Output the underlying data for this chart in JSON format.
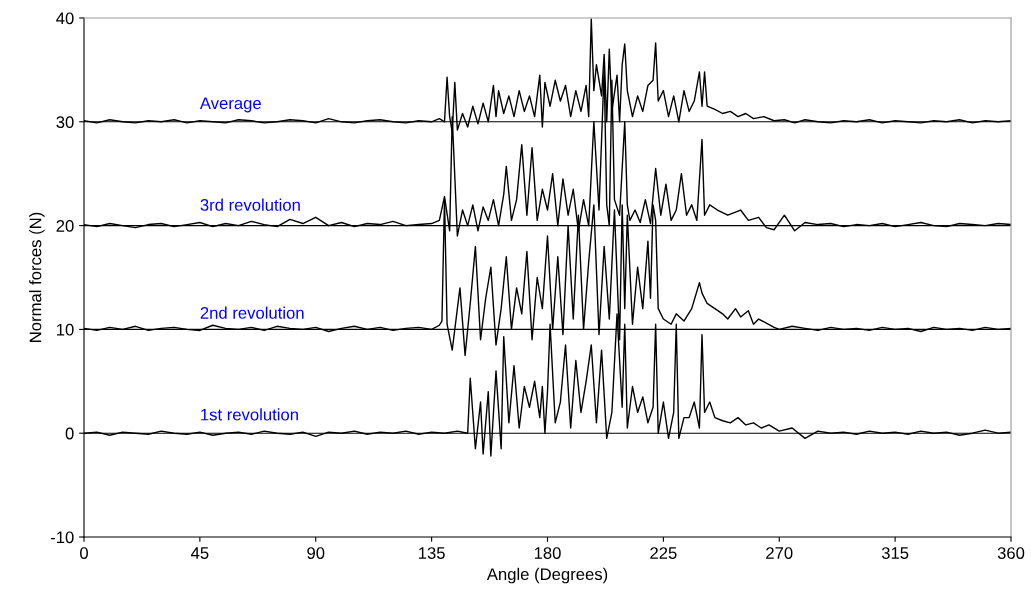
{
  "chart_data": {
    "type": "line",
    "xlabel": "Angle (Degrees)",
    "ylabel": "Normal forces (N)",
    "xlim": [
      0,
      360
    ],
    "xticks": [
      0,
      45,
      90,
      135,
      180,
      225,
      270,
      315,
      360
    ],
    "ylim": [
      -10,
      40
    ],
    "yticks": [
      -10,
      0,
      10,
      20,
      30,
      40
    ],
    "grid": false,
    "marker": "none",
    "line_style": "solid",
    "ref_lines": [
      {
        "axis": "y",
        "value": 0,
        "color": "#000000"
      },
      {
        "axis": "y",
        "value": 10,
        "color": "#000000"
      },
      {
        "axis": "y",
        "value": 20,
        "color": "#000000"
      },
      {
        "axis": "y",
        "value": 30,
        "color": "#000000"
      }
    ],
    "series": [
      {
        "name": "Average",
        "color": "#000000",
        "x": [
          0,
          5,
          10,
          15,
          20,
          25,
          30,
          35,
          40,
          45,
          50,
          55,
          60,
          65,
          70,
          75,
          80,
          85,
          90,
          95,
          100,
          105,
          110,
          115,
          120,
          125,
          130,
          135,
          138,
          140,
          141,
          142,
          143,
          144,
          145,
          147,
          149,
          151,
          153,
          155,
          157,
          159,
          160,
          161,
          163,
          165,
          167,
          169,
          171,
          173,
          175,
          177,
          178,
          179,
          181,
          183,
          185,
          187,
          189,
          191,
          193,
          195,
          196,
          197,
          198,
          199,
          201,
          202,
          203,
          204,
          205,
          207,
          208,
          209,
          210,
          211,
          213,
          215,
          217,
          219,
          221,
          222,
          223,
          225,
          227,
          229,
          231,
          233,
          235,
          237,
          239,
          240,
          241,
          242,
          245,
          248,
          251,
          254,
          257,
          260,
          264,
          268,
          272,
          276,
          280,
          285,
          290,
          295,
          300,
          305,
          310,
          315,
          320,
          325,
          330,
          335,
          340,
          345,
          350,
          355,
          360
        ],
        "values": [
          30.1,
          29.9,
          30.2,
          30.0,
          29.9,
          30.1,
          30.0,
          30.2,
          29.9,
          30.1,
          30.0,
          29.9,
          30.2,
          30.1,
          29.9,
          30.0,
          30.2,
          30.1,
          29.9,
          30.3,
          30.0,
          29.9,
          30.1,
          30.2,
          30.0,
          29.9,
          30.1,
          30.0,
          30.3,
          30.0,
          34.3,
          30.5,
          29.0,
          33.8,
          29.2,
          30.8,
          29.5,
          31.5,
          29.8,
          31.8,
          30.0,
          33.5,
          30.5,
          33.0,
          30.8,
          32.5,
          30.5,
          33.0,
          31.0,
          32.5,
          30.5,
          34.5,
          29.5,
          33.8,
          31.5,
          34.0,
          32.0,
          33.5,
          30.5,
          33.0,
          31.0,
          33.5,
          30.5,
          39.9,
          33.0,
          35.5,
          32.5,
          36.5,
          30.0,
          37.0,
          31.0,
          34.5,
          30.0,
          35.5,
          37.5,
          33.0,
          30.5,
          32.5,
          31.0,
          33.5,
          34.0,
          37.6,
          32.0,
          33.0,
          30.5,
          32.5,
          30.0,
          33.0,
          31.0,
          32.0,
          34.8,
          31.5,
          34.8,
          31.5,
          31.2,
          30.8,
          31.0,
          30.5,
          30.8,
          30.3,
          30.5,
          30.1,
          30.2,
          29.9,
          30.2,
          30.0,
          29.9,
          30.1,
          30.0,
          30.2,
          29.9,
          30.1,
          30.0,
          29.9,
          30.1,
          30.0,
          30.2,
          29.9,
          30.1,
          30.0,
          30.1
        ]
      },
      {
        "name": "3rd revolution",
        "color": "#000000",
        "x": [
          0,
          5,
          10,
          15,
          20,
          25,
          30,
          35,
          40,
          45,
          50,
          55,
          60,
          65,
          70,
          75,
          80,
          85,
          90,
          95,
          100,
          105,
          110,
          115,
          120,
          125,
          130,
          135,
          138,
          140,
          142,
          143,
          145,
          147,
          149,
          151,
          153,
          155,
          157,
          159,
          161,
          163,
          164,
          166,
          168,
          170,
          172,
          174,
          176,
          178,
          180,
          182,
          184,
          186,
          188,
          190,
          192,
          194,
          196,
          198,
          200,
          202,
          203,
          204,
          205,
          206,
          208,
          210,
          211,
          212,
          214,
          216,
          218,
          220,
          222,
          224,
          226,
          228,
          230,
          232,
          234,
          236,
          238,
          240,
          241,
          243,
          246,
          250,
          255,
          258,
          262,
          265,
          268,
          272,
          276,
          280,
          285,
          290,
          295,
          300,
          305,
          310,
          315,
          320,
          325,
          330,
          335,
          340,
          345,
          350,
          355,
          360
        ],
        "values": [
          20.1,
          19.9,
          20.2,
          20.0,
          19.8,
          20.1,
          20.2,
          19.9,
          20.1,
          20.3,
          19.9,
          20.2,
          20.0,
          20.4,
          20.1,
          19.9,
          20.6,
          20.2,
          20.8,
          20.0,
          20.3,
          19.9,
          20.2,
          20.1,
          20.4,
          20.0,
          20.1,
          20.2,
          20.5,
          22.8,
          19.5,
          30.5,
          19.0,
          21.5,
          20.0,
          22.0,
          19.5,
          21.8,
          20.5,
          22.5,
          20.0,
          23.0,
          25.7,
          20.5,
          22.5,
          27.8,
          21.0,
          27.5,
          20.5,
          23.5,
          21.5,
          25.0,
          20.0,
          24.5,
          21.0,
          23.5,
          19.5,
          22.5,
          20.0,
          30.0,
          21.5,
          35.0,
          22.0,
          20.0,
          34.0,
          22.5,
          21.0,
          30.0,
          22.0,
          20.5,
          21.5,
          20.3,
          22.5,
          20.2,
          25.5,
          21.0,
          24.0,
          20.5,
          21.5,
          25.0,
          21.0,
          22.0,
          20.5,
          28.3,
          21.0,
          22.0,
          21.5,
          21.0,
          21.5,
          20.5,
          20.8,
          19.8,
          19.6,
          21.0,
          19.5,
          20.3,
          20.1,
          20.2,
          19.9,
          20.1,
          20.0,
          20.2,
          19.9,
          20.1,
          20.3,
          20.0,
          19.9,
          20.2,
          20.1,
          20.0,
          20.2,
          20.1
        ]
      },
      {
        "name": "2nd revolution",
        "color": "#000000",
        "x": [
          0,
          5,
          10,
          15,
          20,
          25,
          30,
          35,
          40,
          45,
          50,
          55,
          60,
          65,
          70,
          75,
          80,
          85,
          90,
          95,
          100,
          105,
          110,
          115,
          120,
          125,
          130,
          135,
          138,
          139,
          140,
          141,
          143,
          146,
          148,
          150,
          152,
          154,
          156,
          158,
          160,
          162,
          164,
          166,
          168,
          170,
          172,
          174,
          176,
          178,
          180,
          182,
          184,
          186,
          188,
          190,
          192,
          194,
          196,
          198,
          200,
          202,
          204,
          206,
          208,
          209,
          210,
          211,
          213,
          215,
          217,
          219,
          220,
          221,
          222,
          223,
          225,
          228,
          230,
          233,
          236,
          239,
          240,
          242,
          245,
          248,
          250,
          253,
          255,
          258,
          260,
          262,
          265,
          268,
          270,
          275,
          280,
          285,
          290,
          295,
          300,
          305,
          310,
          315,
          320,
          325,
          330,
          335,
          340,
          345,
          350,
          355,
          360
        ],
        "values": [
          10.1,
          9.9,
          10.2,
          10.0,
          10.3,
          9.9,
          10.1,
          10.2,
          10.0,
          9.9,
          10.4,
          10.1,
          10.0,
          10.2,
          9.9,
          10.3,
          10.1,
          10.0,
          10.2,
          9.8,
          10.1,
          10.3,
          10.0,
          10.2,
          9.9,
          10.1,
          10.2,
          10.0,
          10.4,
          10.8,
          22.5,
          10.5,
          8.0,
          14.0,
          7.5,
          12.5,
          18.0,
          9.0,
          13.0,
          16.0,
          8.5,
          12.0,
          17.0,
          10.0,
          14.0,
          11.5,
          17.5,
          9.0,
          15.0,
          12.0,
          19.0,
          10.0,
          17.0,
          9.5,
          20.0,
          11.0,
          21.0,
          10.0,
          16.5,
          22.0,
          9.5,
          18.0,
          11.0,
          21.5,
          9.0,
          22.0,
          12.0,
          21.0,
          10.5,
          16.0,
          12.0,
          18.5,
          13.0,
          22.0,
          20.5,
          12.0,
          11.0,
          10.5,
          11.5,
          10.8,
          12.0,
          14.5,
          13.5,
          12.5,
          12.0,
          11.5,
          11.0,
          12.0,
          11.2,
          11.8,
          10.5,
          11.0,
          10.6,
          10.2,
          10.0,
          10.3,
          10.1,
          9.9,
          10.2,
          10.0,
          10.1,
          9.9,
          10.2,
          10.0,
          10.1,
          9.8,
          10.2,
          10.0,
          10.1,
          9.9,
          10.2,
          10.0,
          10.1
        ]
      },
      {
        "name": "1st revolution",
        "color": "#000000",
        "x": [
          0,
          5,
          10,
          15,
          20,
          25,
          30,
          35,
          40,
          45,
          50,
          55,
          60,
          65,
          70,
          75,
          80,
          85,
          90,
          95,
          100,
          105,
          110,
          115,
          120,
          125,
          130,
          135,
          140,
          145,
          149,
          150,
          152,
          154,
          155,
          157,
          158,
          160,
          162,
          163,
          165,
          167,
          169,
          171,
          173,
          175,
          177,
          178,
          179,
          180,
          181,
          183,
          185,
          187,
          189,
          191,
          193,
          195,
          197,
          199,
          201,
          203,
          205,
          207,
          209,
          210,
          211,
          213,
          215,
          217,
          219,
          221,
          222,
          223,
          225,
          227,
          229,
          230,
          231,
          233,
          235,
          237,
          239,
          240,
          241,
          243,
          245,
          248,
          251,
          254,
          257,
          260,
          263,
          266,
          270,
          275,
          280,
          285,
          290,
          295,
          300,
          305,
          310,
          315,
          320,
          325,
          330,
          335,
          340,
          345,
          350,
          355,
          360
        ],
        "values": [
          0.0,
          0.1,
          -0.2,
          0.1,
          0.0,
          -0.1,
          0.2,
          0.0,
          -0.1,
          0.1,
          -0.2,
          0.0,
          0.1,
          -0.1,
          0.2,
          0.0,
          -0.1,
          0.1,
          -0.3,
          0.1,
          0.0,
          0.2,
          -0.1,
          0.1,
          0.0,
          0.2,
          -0.1,
          0.1,
          0.0,
          0.2,
          0.0,
          5.3,
          -1.5,
          3.0,
          -2.0,
          4.0,
          -2.2,
          6.0,
          -1.5,
          9.3,
          1.0,
          6.5,
          0.5,
          4.5,
          2.5,
          5.0,
          1.5,
          4.5,
          0.0,
          4.0,
          10.5,
          1.0,
          3.0,
          8.5,
          0.5,
          7.0,
          2.0,
          5.0,
          8.5,
          1.0,
          8.0,
          -0.5,
          2.0,
          11.5,
          2.5,
          10.5,
          0.5,
          4.5,
          2.0,
          3.5,
          1.0,
          2.5,
          10.5,
          0.0,
          3.0,
          -0.5,
          2.0,
          10.5,
          -0.5,
          1.5,
          1.5,
          3.0,
          0.5,
          9.5,
          2.0,
          3.0,
          1.5,
          1.2,
          1.0,
          1.5,
          0.8,
          1.0,
          0.5,
          0.8,
          0.2,
          0.5,
          -0.5,
          0.2,
          0.0,
          0.1,
          -0.1,
          0.2,
          0.0,
          0.1,
          -0.1,
          0.2,
          0.0,
          0.1,
          -0.2,
          0.0,
          0.3,
          0.0,
          0.1
        ]
      }
    ]
  }
}
